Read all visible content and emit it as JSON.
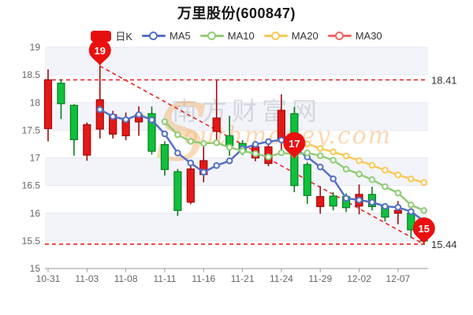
{
  "title": "万里股份(600847)",
  "legend": {
    "items": [
      {
        "label": "日K",
        "type": "candle",
        "color": "#e60e0e"
      },
      {
        "label": "MA5",
        "type": "line",
        "color": "#5470c6"
      },
      {
        "label": "MA10",
        "type": "line",
        "color": "#91cc75"
      },
      {
        "label": "MA20",
        "type": "line",
        "color": "#fac858"
      },
      {
        "label": "MA30",
        "type": "line",
        "color": "#ee6666"
      }
    ]
  },
  "watermark": {
    "brand_cjk": "南方财富网",
    "brand_latin_initial": "S",
    "brand_latin_rest": "outhmoney.com"
  },
  "chart_data": {
    "type": "candlestick",
    "title": "万里股份(600847)",
    "ylim": [
      15,
      19
    ],
    "y_ticks": [
      "19",
      "18.5",
      "18",
      "17.5",
      "17",
      "16.5",
      "16",
      "15.5",
      "15"
    ],
    "x_label_every": 3,
    "dates": [
      "10-31",
      "11-01",
      "11-02",
      "11-03",
      "11-04",
      "11-07",
      "11-08",
      "11-09",
      "11-10",
      "11-11",
      "11-14",
      "11-15",
      "11-16",
      "11-17",
      "11-18",
      "11-21",
      "11-22",
      "11-23",
      "11-24",
      "11-25",
      "11-28",
      "11-29",
      "11-30",
      "12-01",
      "12-02",
      "12-05",
      "12-06",
      "12-07",
      "12-08",
      "12-09"
    ],
    "ohlc": [
      {
        "open": 17.53,
        "close": 18.41,
        "low": 17.3,
        "high": 18.6
      },
      {
        "open": 18.35,
        "close": 17.98,
        "low": 17.7,
        "high": 18.42
      },
      {
        "open": 17.95,
        "close": 17.33,
        "low": 17.04,
        "high": 17.97
      },
      {
        "open": 17.05,
        "close": 17.6,
        "low": 16.95,
        "high": 17.64
      },
      {
        "open": 17.52,
        "close": 18.05,
        "low": 17.35,
        "high": 18.66
      },
      {
        "open": 17.43,
        "close": 17.78,
        "low": 17.35,
        "high": 17.85
      },
      {
        "open": 17.4,
        "close": 17.7,
        "low": 17.32,
        "high": 17.82
      },
      {
        "open": 17.65,
        "close": 17.78,
        "low": 17.4,
        "high": 17.93
      },
      {
        "open": 17.8,
        "close": 17.12,
        "low": 17.06,
        "high": 17.93
      },
      {
        "open": 17.24,
        "close": 16.79,
        "low": 16.68,
        "high": 17.3
      },
      {
        "open": 16.75,
        "close": 16.05,
        "low": 15.95,
        "high": 16.8
      },
      {
        "open": 16.2,
        "close": 16.8,
        "low": 16.16,
        "high": 16.86
      },
      {
        "open": 16.7,
        "close": 16.95,
        "low": 16.56,
        "high": 17.22
      },
      {
        "open": 17.48,
        "close": 17.72,
        "low": 17.28,
        "high": 18.4
      },
      {
        "open": 17.4,
        "close": 17.22,
        "low": 17.04,
        "high": 17.76
      },
      {
        "open": 17.26,
        "close": 17.13,
        "low": 17.05,
        "high": 17.32
      },
      {
        "open": 17.0,
        "close": 17.2,
        "low": 16.94,
        "high": 17.26
      },
      {
        "open": 16.9,
        "close": 17.2,
        "low": 16.85,
        "high": 17.26
      },
      {
        "open": 17.32,
        "close": 17.86,
        "low": 17.12,
        "high": 18.15
      },
      {
        "open": 17.8,
        "close": 16.5,
        "low": 16.38,
        "high": 17.92
      },
      {
        "open": 16.88,
        "close": 16.32,
        "low": 16.17,
        "high": 16.92
      },
      {
        "open": 16.12,
        "close": 16.3,
        "low": 15.99,
        "high": 16.49
      },
      {
        "open": 16.31,
        "close": 16.13,
        "low": 16.05,
        "high": 16.38
      },
      {
        "open": 16.3,
        "close": 16.1,
        "low": 16.02,
        "high": 16.36
      },
      {
        "open": 16.13,
        "close": 16.34,
        "low": 15.98,
        "high": 16.52
      },
      {
        "open": 16.34,
        "close": 16.12,
        "low": 16.05,
        "high": 16.48
      },
      {
        "open": 16.12,
        "close": 15.93,
        "low": 15.85,
        "high": 16.18
      },
      {
        "open": 16.0,
        "close": 16.05,
        "low": 15.8,
        "high": 16.22
      },
      {
        "open": 16.0,
        "close": 15.7,
        "low": 15.55,
        "high": 16.03
      },
      {
        "open": 15.7,
        "close": 15.5,
        "low": 15.44,
        "high": 15.78
      }
    ],
    "ma_series": [
      {
        "name": "MA5",
        "period": 5,
        "color": "#5470c6"
      },
      {
        "name": "MA10",
        "period": 10,
        "color": "#91cc75"
      },
      {
        "name": "MA20",
        "period": 20,
        "color": "#fac858"
      },
      {
        "name": "MA30",
        "period": 30,
        "color": "#ee6666"
      }
    ],
    "annotations": {
      "max_close_line": {
        "value": 18.41,
        "label": "18.41"
      },
      "min_low_line": {
        "value": 15.44,
        "label": "15.44"
      },
      "trend_line": {
        "from": {
          "date": "11-04",
          "price": 18.66
        },
        "to": {
          "date": "12-09",
          "price": 15.44
        }
      },
      "pins": [
        {
          "label": "19",
          "date": "11-04",
          "price": 18.66
        },
        {
          "label": "17",
          "date": "11-25",
          "price": 16.98
        },
        {
          "label": "15",
          "date": "12-09",
          "price": 15.44
        }
      ]
    },
    "colors": {
      "up_fill": "#e51717",
      "up_border": "#a00b0b",
      "down_fill": "#0fc13a",
      "down_border": "#0a7d22",
      "band": "#f2f4fa",
      "grid": "#e4e8f1",
      "axis_line": "#999999",
      "axis_text": "#666666",
      "dashed_line": "#ee2222",
      "pin": "#ec0f0f",
      "side_label": "#333333"
    },
    "legend_position": "top",
    "grid_bands": "alternating"
  }
}
